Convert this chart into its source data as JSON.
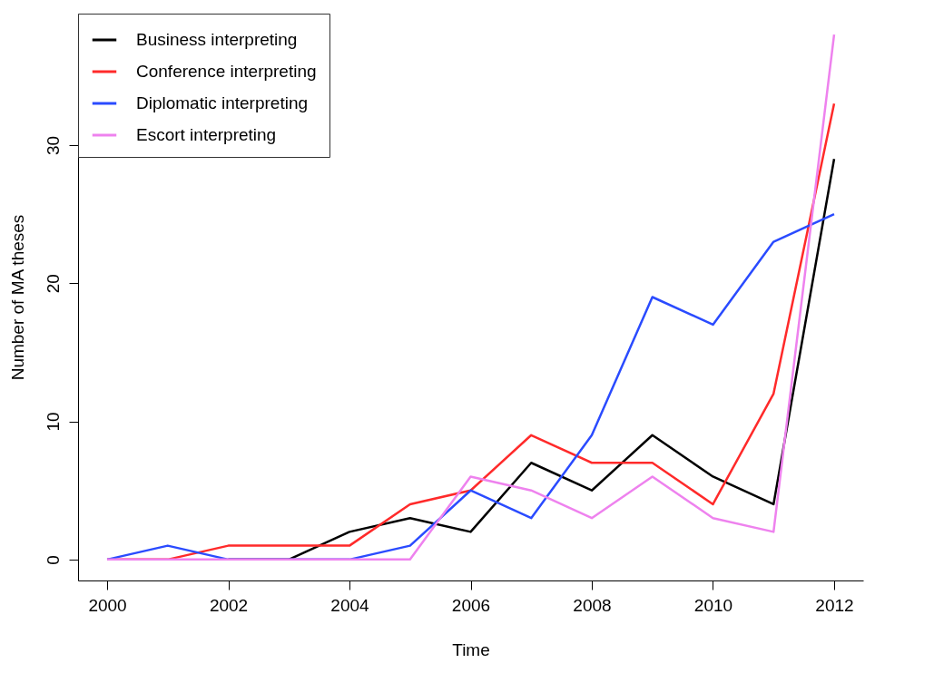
{
  "chart_data": {
    "type": "line",
    "xlabel": "Time",
    "ylabel": "Number of MA theses",
    "x": [
      2000,
      2001,
      2002,
      2003,
      2004,
      2005,
      2006,
      2007,
      2008,
      2009,
      2010,
      2011,
      2012
    ],
    "series": [
      {
        "name": "Business interpreting",
        "color": "#000000",
        "values": [
          null,
          null,
          0,
          0,
          2,
          3,
          2,
          7,
          5,
          9,
          6,
          4,
          29
        ]
      },
      {
        "name": "Conference interpreting",
        "color": "#ff2a2a",
        "values": [
          0,
          0,
          1,
          1,
          1,
          4,
          5,
          9,
          7,
          7,
          4,
          12,
          33
        ]
      },
      {
        "name": "Diplomatic interpreting",
        "color": "#2a4bff",
        "values": [
          0,
          1,
          0,
          0,
          0,
          1,
          5,
          3,
          9,
          19,
          17,
          23,
          25
        ]
      },
      {
        "name": "Escort interpreting",
        "color": "#ee82ee",
        "values": [
          0,
          0,
          0,
          0,
          0,
          0,
          6,
          5,
          3,
          6,
          3,
          2,
          38
        ]
      }
    ],
    "xlim": [
      1999.52,
      2012.48
    ],
    "xticks": [
      2000,
      2002,
      2004,
      2006,
      2008,
      2010,
      2012
    ],
    "ylim": [
      -1.52,
      39.52
    ],
    "yticks": [
      0,
      10,
      20,
      30
    ],
    "grid": false,
    "legend": "top left",
    "marker": "none",
    "line_style": "solid"
  }
}
